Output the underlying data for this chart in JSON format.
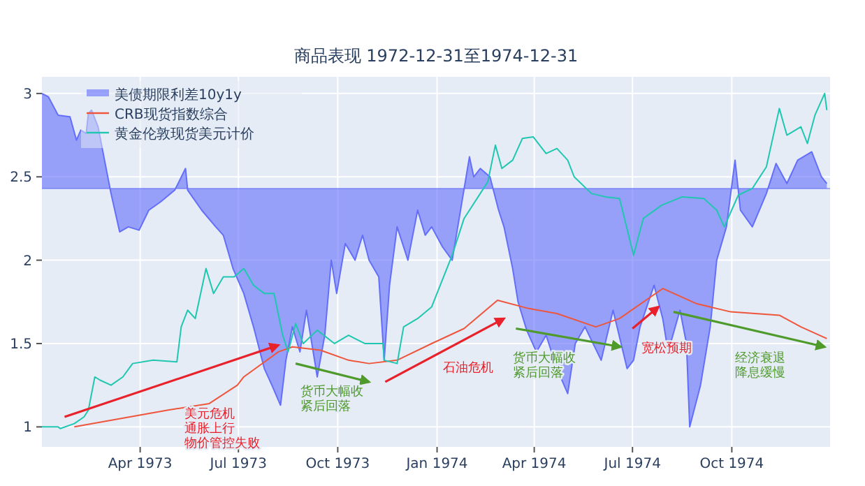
{
  "chart_data": {
    "type": "line",
    "title": "商品表现 1972-12-31至1974-12-31",
    "xlim": [
      "1972-12-31",
      "1974-12-31"
    ],
    "ylim": [
      0.88,
      3.1
    ],
    "yticks": [
      1,
      1.5,
      2,
      2.5,
      3
    ],
    "xticks": [
      {
        "value": "1973-04-01",
        "label": "Apr 1973"
      },
      {
        "value": "1973-07-01",
        "label": "Jul 1973"
      },
      {
        "value": "1973-10-01",
        "label": "Oct 1973"
      },
      {
        "value": "1974-01-01",
        "label": "Jan 1974"
      },
      {
        "value": "1974-04-01",
        "label": "Apr 1974"
      },
      {
        "value": "1974-07-01",
        "label": "Jul 1974"
      },
      {
        "value": "1974-10-01",
        "label": "Oct 1974"
      }
    ],
    "grid": true,
    "legend": "top left",
    "ref_lines": [
      {
        "axis": "y",
        "value": 2.43,
        "color": "#636efa"
      }
    ],
    "series": [
      {
        "name": "美债期限利差10y1y",
        "type": "area",
        "color": "#636efa",
        "x": [
          "1972-12-31",
          "1973-01-06",
          "1973-01-15",
          "1973-01-26",
          "1973-02-01",
          "1973-02-05",
          "1973-02-10",
          "1973-02-12",
          "1973-02-15",
          "1973-02-21",
          "1973-02-27",
          "1973-03-05",
          "1973-03-13",
          "1973-03-21",
          "1973-03-31",
          "1973-04-09",
          "1973-04-20",
          "1973-05-03",
          "1973-05-13",
          "1973-05-15",
          "1973-05-28",
          "1973-06-10",
          "1973-06-17",
          "1973-06-26",
          "1973-07-06",
          "1973-07-15",
          "1973-07-25",
          "1973-08-01",
          "1973-08-09",
          "1973-08-14",
          "1973-08-20",
          "1973-08-27",
          "1973-09-02",
          "1973-09-12",
          "1973-09-19",
          "1973-09-25",
          "1973-09-30",
          "1973-10-08",
          "1973-10-17",
          "1973-10-24",
          "1973-10-30",
          "1973-11-08",
          "1973-11-13",
          "1973-11-18",
          "1973-11-25",
          "1973-12-05",
          "1973-12-14",
          "1973-12-21",
          "1973-12-27",
          "1974-01-06",
          "1974-01-15",
          "1974-01-31",
          "1974-02-04",
          "1974-02-10",
          "1974-02-19",
          "1974-02-27",
          "1974-03-04",
          "1974-03-12",
          "1974-03-17",
          "1974-03-25",
          "1974-04-03",
          "1974-04-12",
          "1974-04-22",
          "1974-05-02",
          "1974-05-09",
          "1974-05-18",
          "1974-06-02",
          "1974-06-13",
          "1974-06-26",
          "1974-07-02",
          "1974-07-08",
          "1974-07-21",
          "1974-07-29",
          "1974-08-03",
          "1974-08-14",
          "1974-08-20",
          "1974-08-23",
          "1974-09-02",
          "1974-09-11",
          "1974-09-17",
          "1974-09-26",
          "1974-10-04",
          "1974-10-09",
          "1974-10-20",
          "1974-11-02",
          "1974-11-11",
          "1974-11-21",
          "1974-12-01",
          "1974-12-14",
          "1974-12-23",
          "1974-12-28"
        ],
        "values": [
          3.0,
          2.98,
          2.87,
          2.86,
          2.72,
          2.78,
          2.76,
          2.88,
          2.9,
          2.8,
          2.6,
          2.4,
          2.17,
          2.2,
          2.18,
          2.3,
          2.35,
          2.42,
          2.55,
          2.42,
          2.3,
          2.2,
          2.15,
          1.95,
          1.8,
          1.6,
          1.35,
          1.25,
          1.13,
          1.4,
          1.6,
          1.45,
          1.7,
          1.3,
          1.55,
          2.0,
          1.8,
          2.1,
          2.0,
          2.15,
          2.0,
          1.9,
          1.4,
          1.85,
          2.2,
          2.0,
          2.3,
          2.15,
          2.2,
          2.08,
          2.0,
          2.62,
          2.5,
          2.55,
          2.5,
          2.3,
          2.2,
          1.95,
          1.75,
          1.58,
          1.45,
          1.55,
          1.35,
          1.2,
          1.5,
          1.6,
          1.4,
          1.7,
          1.35,
          1.4,
          1.6,
          1.85,
          1.65,
          1.45,
          1.7,
          1.5,
          1.0,
          1.25,
          1.6,
          2.0,
          2.2,
          2.6,
          2.3,
          2.2,
          2.4,
          2.58,
          2.46,
          2.6,
          2.65,
          2.5,
          2.46
        ]
      },
      {
        "name": "CRB现货指数综合",
        "color": "#ef553b",
        "x": [
          "1973-01-30",
          "1973-04-26",
          "1973-06-04",
          "1973-06-30",
          "1973-07-06",
          "1973-08-07",
          "1973-08-20",
          "1973-09-15",
          "1973-10-11",
          "1973-10-30",
          "1973-11-25",
          "1973-12-27",
          "1974-01-26",
          "1974-02-26",
          "1974-03-27",
          "1974-04-22",
          "1974-05-28",
          "1974-06-19",
          "1974-07-29",
          "1974-08-29",
          "1974-09-30",
          "1974-11-14",
          "1974-12-04",
          "1974-12-28"
        ],
        "values": [
          1.0,
          1.1,
          1.14,
          1.25,
          1.3,
          1.45,
          1.48,
          1.46,
          1.4,
          1.38,
          1.4,
          1.5,
          1.59,
          1.76,
          1.71,
          1.68,
          1.6,
          1.65,
          1.83,
          1.74,
          1.69,
          1.67,
          1.6,
          1.53
        ]
      },
      {
        "name": "黄金伦敦现货美元计价",
        "color": "#1fc7b0",
        "x": [
          "1972-12-31",
          "1973-01-15",
          "1973-01-17",
          "1973-01-30",
          "1973-02-08",
          "1973-02-12",
          "1973-02-18",
          "1973-02-23",
          "1973-03-05",
          "1973-03-16",
          "1973-03-25",
          "1973-04-13",
          "1973-05-05",
          "1973-05-09",
          "1973-05-15",
          "1973-05-22",
          "1973-06-01",
          "1973-06-08",
          "1973-06-17",
          "1973-06-27",
          "1973-07-06",
          "1973-07-15",
          "1973-07-25",
          "1973-08-03",
          "1973-08-11",
          "1973-08-16",
          "1973-08-23",
          "1973-08-30",
          "1973-09-12",
          "1973-09-28",
          "1973-10-11",
          "1973-10-26",
          "1973-11-12",
          "1973-11-13",
          "1973-11-25",
          "1973-12-01",
          "1973-12-14",
          "1973-12-27",
          "1974-01-15",
          "1974-01-26",
          "1974-02-17",
          "1974-02-24",
          "1974-03-02",
          "1974-03-12",
          "1974-03-21",
          "1974-03-31",
          "1974-04-12",
          "1974-04-22",
          "1974-05-02",
          "1974-05-08",
          "1974-05-24",
          "1974-06-06",
          "1974-06-19",
          "1974-07-02",
          "1974-07-11",
          "1974-07-28",
          "1974-08-16",
          "1974-09-05",
          "1974-09-17",
          "1974-09-24",
          "1974-10-07",
          "1974-10-20",
          "1974-11-02",
          "1974-11-14",
          "1974-11-21",
          "1974-12-04",
          "1974-12-10",
          "1974-12-17",
          "1974-12-26",
          "1974-12-28"
        ],
        "values": [
          1.0,
          1.0,
          0.99,
          1.02,
          1.06,
          1.1,
          1.3,
          1.28,
          1.25,
          1.3,
          1.38,
          1.4,
          1.39,
          1.6,
          1.7,
          1.65,
          1.95,
          1.8,
          1.9,
          1.9,
          1.95,
          1.85,
          1.8,
          1.8,
          1.55,
          1.45,
          1.62,
          1.5,
          1.58,
          1.5,
          1.55,
          1.5,
          1.5,
          1.4,
          1.38,
          1.6,
          1.65,
          1.72,
          2.03,
          2.25,
          2.47,
          2.69,
          2.55,
          2.6,
          2.73,
          2.74,
          2.64,
          2.67,
          2.6,
          2.5,
          2.4,
          2.38,
          2.37,
          2.03,
          2.25,
          2.33,
          2.38,
          2.37,
          2.3,
          2.2,
          2.39,
          2.43,
          2.56,
          2.91,
          2.75,
          2.8,
          2.7,
          2.87,
          3.0,
          2.9
        ]
      },
      {
        "type": "line",
        "color": "#e8212a",
        "x": [
          "1973-01-21",
          "1973-08-07"
        ],
        "values": [
          1.06,
          1.49
        ]
      },
      {
        "type": "line",
        "color": "#4e9a2a",
        "x": [
          "1973-08-23",
          "1973-10-30"
        ],
        "values": [
          1.38,
          1.27
        ]
      },
      {
        "type": "line",
        "color": "#e8212a",
        "x": [
          "1973-11-14",
          "1974-03-04"
        ],
        "values": [
          1.27,
          1.65
        ]
      },
      {
        "type": "line",
        "color": "#4e9a2a",
        "x": [
          "1974-03-15",
          "1974-06-20"
        ],
        "values": [
          1.59,
          1.48
        ]
      },
      {
        "type": "line",
        "color": "#e8212a",
        "x": [
          "1974-07-01",
          "1974-07-25"
        ],
        "values": [
          1.59,
          1.72
        ]
      },
      {
        "type": "line",
        "color": "#4e9a2a",
        "x": [
          "1974-08-08",
          "1974-12-26"
        ],
        "values": [
          1.69,
          1.48
        ]
      }
    ],
    "annotations": [
      "美元危机通胀上行物价管控失败",
      "货币大幅收紧后回落",
      "石油危机",
      "货币大幅收紧后回落",
      "宽松预期",
      "经济衰退降息缓慢"
    ]
  }
}
